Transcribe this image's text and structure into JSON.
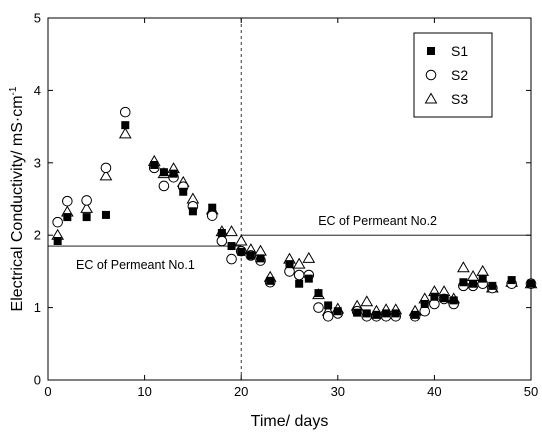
{
  "chart_data": {
    "type": "scatter",
    "xlabel": "Time/ days",
    "ylabel": "Electrical Conductivity/ mS·cm",
    "ylabel_sup": "-1",
    "xlim": [
      0,
      50
    ],
    "ylim": [
      0,
      5
    ],
    "x_ticks": [
      0,
      10,
      20,
      30,
      40,
      50
    ],
    "y_ticks": [
      0,
      1,
      2,
      3,
      4,
      5
    ],
    "grid": false,
    "legend_position": "top-right",
    "series": [
      {
        "name": "S1",
        "marker": "filled-square",
        "x": [
          1,
          2,
          4,
          6,
          8,
          11,
          12,
          13,
          14,
          15,
          17,
          18,
          19,
          20,
          21,
          22,
          23,
          25,
          26,
          27,
          28,
          29,
          30,
          32,
          33,
          34,
          35,
          36,
          38,
          39,
          40,
          41,
          42,
          43,
          44,
          45,
          46,
          48,
          50
        ],
        "y": [
          1.92,
          2.25,
          2.25,
          2.28,
          3.52,
          2.97,
          2.87,
          2.85,
          2.6,
          2.33,
          2.38,
          2.03,
          1.85,
          1.77,
          1.72,
          1.68,
          1.37,
          1.6,
          1.33,
          1.4,
          1.2,
          1.03,
          0.95,
          0.93,
          0.92,
          0.9,
          0.92,
          0.92,
          0.9,
          1.05,
          1.15,
          1.13,
          1.1,
          1.35,
          1.33,
          1.4,
          1.3,
          1.38,
          1.33
        ]
      },
      {
        "name": "S2",
        "marker": "open-circle",
        "x": [
          1,
          2,
          4,
          6,
          8,
          11,
          12,
          13,
          14,
          15,
          17,
          18,
          19,
          20,
          21,
          22,
          23,
          25,
          26,
          27,
          28,
          29,
          30,
          32,
          33,
          34,
          35,
          36,
          38,
          39,
          40,
          41,
          42,
          43,
          44,
          45,
          46,
          48,
          50
        ],
        "y": [
          2.18,
          2.47,
          2.48,
          2.93,
          3.7,
          2.93,
          2.68,
          2.8,
          2.67,
          2.4,
          2.27,
          1.92,
          1.67,
          1.78,
          1.72,
          1.65,
          1.35,
          1.5,
          1.45,
          1.45,
          1.0,
          0.88,
          0.92,
          0.95,
          0.88,
          0.88,
          0.88,
          0.88,
          0.88,
          0.95,
          1.05,
          1.12,
          1.05,
          1.3,
          1.3,
          1.33,
          1.27,
          1.33,
          1.33
        ]
      },
      {
        "name": "S3",
        "marker": "open-triangle",
        "x": [
          1,
          2,
          4,
          6,
          8,
          11,
          12,
          13,
          14,
          15,
          17,
          18,
          19,
          20,
          21,
          22,
          23,
          25,
          26,
          27,
          28,
          29,
          30,
          32,
          33,
          34,
          35,
          36,
          38,
          39,
          40,
          41,
          42,
          43,
          44,
          45,
          46,
          48,
          50
        ],
        "y": [
          2.0,
          2.32,
          2.37,
          2.82,
          3.4,
          3.02,
          2.85,
          2.92,
          2.73,
          2.5,
          2.35,
          2.05,
          2.05,
          1.92,
          1.8,
          1.78,
          1.42,
          1.67,
          1.6,
          1.68,
          1.18,
          0.95,
          0.98,
          1.02,
          1.08,
          0.95,
          0.97,
          0.97,
          0.95,
          1.12,
          1.22,
          1.22,
          1.12,
          1.55,
          1.43,
          1.5,
          1.27,
          1.35,
          1.33
        ]
      }
    ],
    "reference_lines": [
      {
        "label": "EC of Permeant No.1",
        "y": 1.85,
        "x_from": 0,
        "x_to": 20
      },
      {
        "label": "EC of Permeant No.2",
        "y": 2.0,
        "x_from": 20,
        "x_to": 50
      }
    ],
    "divider_x": 20
  }
}
